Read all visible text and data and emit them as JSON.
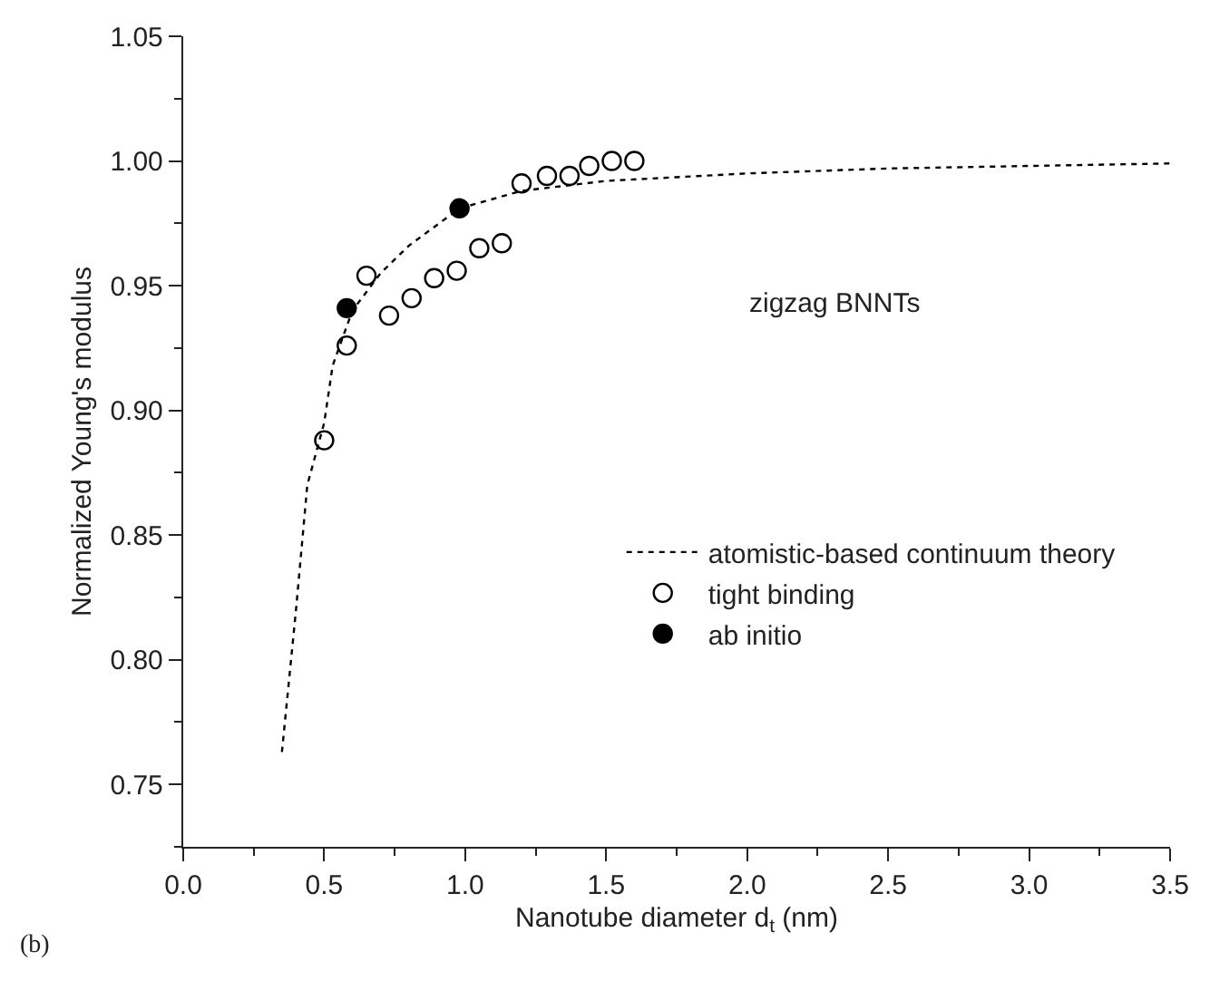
{
  "chart_data": {
    "type": "scatter",
    "xlabel": "Nanotube diameter d$_{t}$ (nm)",
    "ylabel": "Normalized Young's modulus",
    "annotations": [
      "zigzag BNNTs",
      "(b)"
    ],
    "xlim": [
      0,
      3.5
    ],
    "xticks": [
      {
        "value": 0,
        "label": "0.0"
      },
      0.5,
      {
        "value": 1,
        "label": "1.0"
      },
      1.5,
      {
        "value": 2,
        "label": "2.0"
      },
      2.5,
      {
        "value": 3,
        "label": "3.0"
      },
      3.5
    ],
    "ylim": [
      0.725,
      1.05
    ],
    "yticks": [
      0.75,
      {
        "value": 0.8,
        "label": "0.80"
      },
      0.85,
      {
        "value": 0.9,
        "label": "0.90"
      },
      0.95,
      {
        "value": 1.0,
        "label": "1.00"
      },
      1.05
    ],
    "grid": false,
    "legend": "bottom right",
    "series": [
      {
        "name": "atomistic-based continuum theory",
        "type": "line",
        "line_style": "dotted",
        "marker": "none",
        "color": "#000000",
        "x": [
          0.35,
          0.4,
          0.44,
          0.5,
          0.53,
          0.6,
          0.7,
          0.8,
          0.98,
          1.2,
          1.5,
          2.0,
          2.5,
          3.0,
          3.5
        ],
        "values": [
          0.763,
          0.82,
          0.87,
          0.895,
          0.918,
          0.94,
          0.955,
          0.966,
          0.981,
          0.988,
          0.992,
          0.995,
          0.997,
          0.998,
          0.999
        ]
      },
      {
        "name": "tight binding",
        "marker": "circle-open",
        "color": "#000000",
        "x": [
          0.5,
          0.58,
          0.65,
          0.73,
          0.81,
          0.89,
          0.97,
          1.05,
          1.13,
          1.2,
          1.29,
          1.37,
          1.44,
          1.52,
          1.6
        ],
        "values": [
          0.888,
          0.926,
          0.954,
          0.938,
          0.945,
          0.953,
          0.956,
          0.965,
          0.967,
          0.991,
          0.994,
          0.994,
          0.998,
          1.0,
          1.0
        ]
      },
      {
        "name": "ab initio",
        "marker": "circle",
        "color": "#000000",
        "x": [
          0.58,
          0.98
        ],
        "values": [
          0.941,
          0.981
        ]
      }
    ]
  }
}
